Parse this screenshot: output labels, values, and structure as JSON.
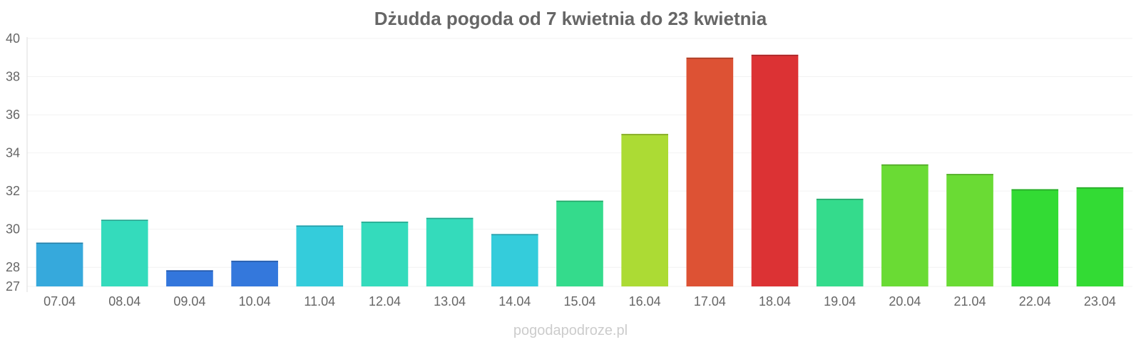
{
  "chart_data": {
    "type": "bar",
    "title": "Dżudda pogoda od 7 kwietnia do 23 kwietnia",
    "xlabel": "",
    "ylabel": "",
    "ylim": [
      27,
      40
    ],
    "yticks": [
      "27",
      "28",
      "30",
      "32",
      "34",
      "36",
      "38",
      "40"
    ],
    "grid": true,
    "categories": [
      "07.04",
      "08.04",
      "09.04",
      "10.04",
      "11.04",
      "12.04",
      "13.04",
      "14.04",
      "15.04",
      "16.04",
      "17.04",
      "18.04",
      "19.04",
      "20.04",
      "21.04",
      "22.04",
      "23.04"
    ],
    "values": [
      29.3,
      30.5,
      27.85,
      28.35,
      30.2,
      30.4,
      30.6,
      29.75,
      31.5,
      35.0,
      39.0,
      39.15,
      31.6,
      33.4,
      32.9,
      32.1,
      32.2
    ],
    "colors": [
      "#36a9dc",
      "#34dbbc",
      "#3376dc",
      "#3478dc",
      "#34ccdb",
      "#34dbbc",
      "#34dbbb",
      "#34ccdb",
      "#34db8c",
      "#acdb34",
      "#dd5234",
      "#dc3234",
      "#34db8c",
      "#6adb34",
      "#6adb34",
      "#33db34",
      "#33db34"
    ]
  },
  "watermark": "pogodapodroze.pl"
}
